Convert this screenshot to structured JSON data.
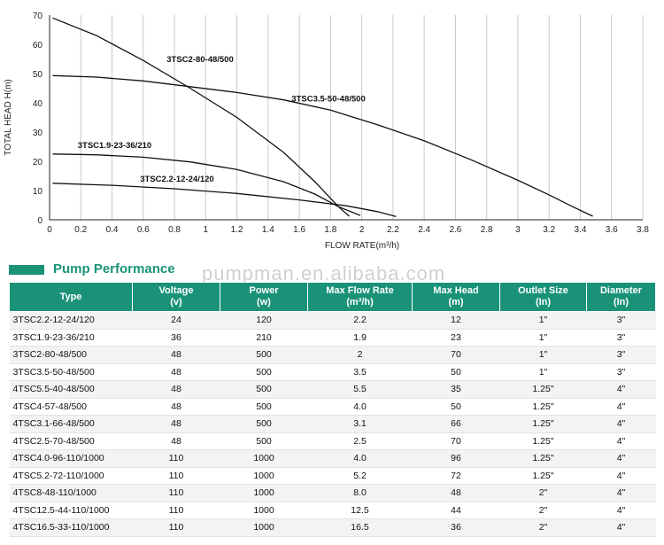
{
  "chart_data": {
    "type": "line",
    "xlabel": "FLOW RATE(m³/h)",
    "ylabel": "TOTAL HEAD H(m)",
    "xlim": [
      0,
      3.8
    ],
    "ylim": [
      0,
      70
    ],
    "x_ticks": [
      "0",
      "0.2",
      "0.4",
      "0.6",
      "0.8",
      "1",
      "1.2",
      "1.4",
      "1.6",
      "1.8",
      "2",
      "2.2",
      "2.4",
      "2.6",
      "2.8",
      "3",
      "3.2",
      "3.4",
      "3.6",
      "3.8"
    ],
    "y_ticks": [
      "0",
      "10",
      "20",
      "30",
      "40",
      "50",
      "60",
      "70"
    ],
    "grid": "vertical",
    "series": [
      {
        "name": "3TSC2-80-48/500",
        "points": [
          [
            0.02,
            69
          ],
          [
            0.3,
            63
          ],
          [
            0.6,
            54.5
          ],
          [
            0.9,
            45
          ],
          [
            1.2,
            35
          ],
          [
            1.5,
            23
          ],
          [
            1.7,
            13
          ],
          [
            1.85,
            4.5
          ],
          [
            1.92,
            1.2
          ]
        ]
      },
      {
        "name": "3TSC3.5-50-48/500",
        "points": [
          [
            0.02,
            49.3
          ],
          [
            0.3,
            48.8
          ],
          [
            0.6,
            47.5
          ],
          [
            0.9,
            45.5
          ],
          [
            1.2,
            43.5
          ],
          [
            1.5,
            41
          ],
          [
            1.8,
            37.5
          ],
          [
            2.1,
            32.5
          ],
          [
            2.4,
            27
          ],
          [
            2.7,
            20.5
          ],
          [
            3.0,
            13.5
          ],
          [
            3.2,
            8.5
          ],
          [
            3.35,
            4.5
          ],
          [
            3.48,
            1.2
          ]
        ]
      },
      {
        "name": "3TSC1.9-23-36/210",
        "points": [
          [
            0.02,
            22.5
          ],
          [
            0.3,
            22.2
          ],
          [
            0.6,
            21.4
          ],
          [
            0.9,
            19.8
          ],
          [
            1.2,
            17.2
          ],
          [
            1.5,
            13
          ],
          [
            1.7,
            8.8
          ],
          [
            1.85,
            4.5
          ],
          [
            1.99,
            1.5
          ]
        ]
      },
      {
        "name": "3TSC2.2-12-24/120",
        "points": [
          [
            0.02,
            12.5
          ],
          [
            0.4,
            11.8
          ],
          [
            0.8,
            10.6
          ],
          [
            1.2,
            9
          ],
          [
            1.6,
            6.8
          ],
          [
            1.9,
            4.8
          ],
          [
            2.1,
            2.8
          ],
          [
            2.22,
            1.1
          ]
        ]
      }
    ],
    "annotations": [
      {
        "text": "3TSC2-80-48/500",
        "x": 0.75,
        "y": 54
      },
      {
        "text": "3TSC3.5-50-48/500",
        "x": 1.55,
        "y": 40.5
      },
      {
        "text": "3TSC1.9-23-36/210",
        "x": 0.18,
        "y": 24.5
      },
      {
        "text": "3TSC2.2-12-24/120",
        "x": 0.58,
        "y": 13
      }
    ]
  },
  "section_title": "Pump Performance",
  "watermark": "pumpman.en.alibaba.com",
  "table": {
    "headers": [
      {
        "label": "Type",
        "sub": ""
      },
      {
        "label": "Voltage",
        "sub": "(v)"
      },
      {
        "label": "Power",
        "sub": "(w)"
      },
      {
        "label": "Max Flow Rate",
        "sub": "(m³/h)"
      },
      {
        "label": "Max Head",
        "sub": "(m)"
      },
      {
        "label": "Outlet Size",
        "sub": "(In)"
      },
      {
        "label": "Diameter",
        "sub": "(In)"
      }
    ],
    "rows": [
      [
        "3TSC2.2-12-24/120",
        "24",
        "120",
        "2.2",
        "12",
        "1\"",
        "3\""
      ],
      [
        "3TSC1.9-23-36/210",
        "36",
        "210",
        "1.9",
        "23",
        "1\"",
        "3\""
      ],
      [
        "3TSC2-80-48/500",
        "48",
        "500",
        "2",
        "70",
        "1\"",
        "3\""
      ],
      [
        "3TSC3.5-50-48/500",
        "48",
        "500",
        "3.5",
        "50",
        "1\"",
        "3\""
      ],
      [
        "4TSC5.5-40-48/500",
        "48",
        "500",
        "5.5",
        "35",
        "1.25\"",
        "4\""
      ],
      [
        "4TSC4-57-48/500",
        "48",
        "500",
        "4.0",
        "50",
        "1.25\"",
        "4\""
      ],
      [
        "4TSC3.1-66-48/500",
        "48",
        "500",
        "3.1",
        "66",
        "1.25\"",
        "4\""
      ],
      [
        "4TSC2.5-70-48/500",
        "48",
        "500",
        "2.5",
        "70",
        "1.25\"",
        "4\""
      ],
      [
        "4TSC4.0-96-110/1000",
        "110",
        "1000",
        "4.0",
        "96",
        "1.25\"",
        "4\""
      ],
      [
        "4TSC5.2-72-110/1000",
        "110",
        "1000",
        "5.2",
        "72",
        "1.25\"",
        "4\""
      ],
      [
        "4TSC8-48-110/1000",
        "110",
        "1000",
        "8.0",
        "48",
        "2\"",
        "4\""
      ],
      [
        "4TSC12.5-44-110/1000",
        "110",
        "1000",
        "12.5",
        "44",
        "2\"",
        "4\""
      ],
      [
        "4TSC16.5-33-110/1000",
        "110",
        "1000",
        "16.5",
        "36",
        "2\"",
        "4\""
      ]
    ]
  }
}
